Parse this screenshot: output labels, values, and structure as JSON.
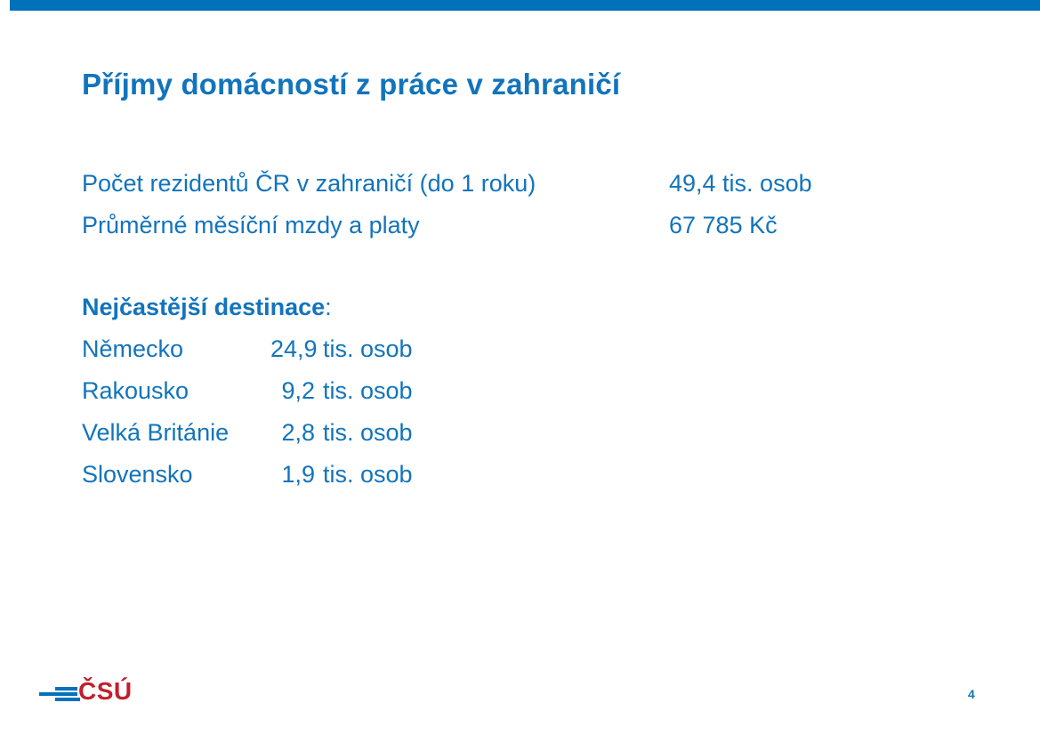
{
  "slide": {
    "title": "Příjmy domácností z práce v zahraničí"
  },
  "facts": {
    "0": {
      "label": "Počet rezidentů ČR v zahraničí (do 1 roku)",
      "value": "49,4 tis. osob"
    },
    "1": {
      "label": "Průměrné měsíční mzdy a platy",
      "value": "67 785 Kč"
    }
  },
  "destinations": {
    "heading": "Nejčastější destinace",
    "heading_colon": ":",
    "items": {
      "0": {
        "name": "Německo",
        "amount": "24,9",
        "unit": "tis. osob"
      },
      "1": {
        "name": "Rakousko",
        "amount": "9,2",
        "unit": "tis. osob"
      },
      "2": {
        "name": "Velká Británie",
        "amount": "2,8",
        "unit": "tis. osob"
      },
      "3": {
        "name": "Slovensko",
        "amount": "1,9",
        "unit": "tis. osob"
      }
    }
  },
  "footer": {
    "logo_text": "ČSÚ",
    "page_number": "4"
  },
  "colors": {
    "brand_blue": "#0072BC",
    "text_blue": "#1274BC",
    "logo_red": "#C0202E"
  }
}
